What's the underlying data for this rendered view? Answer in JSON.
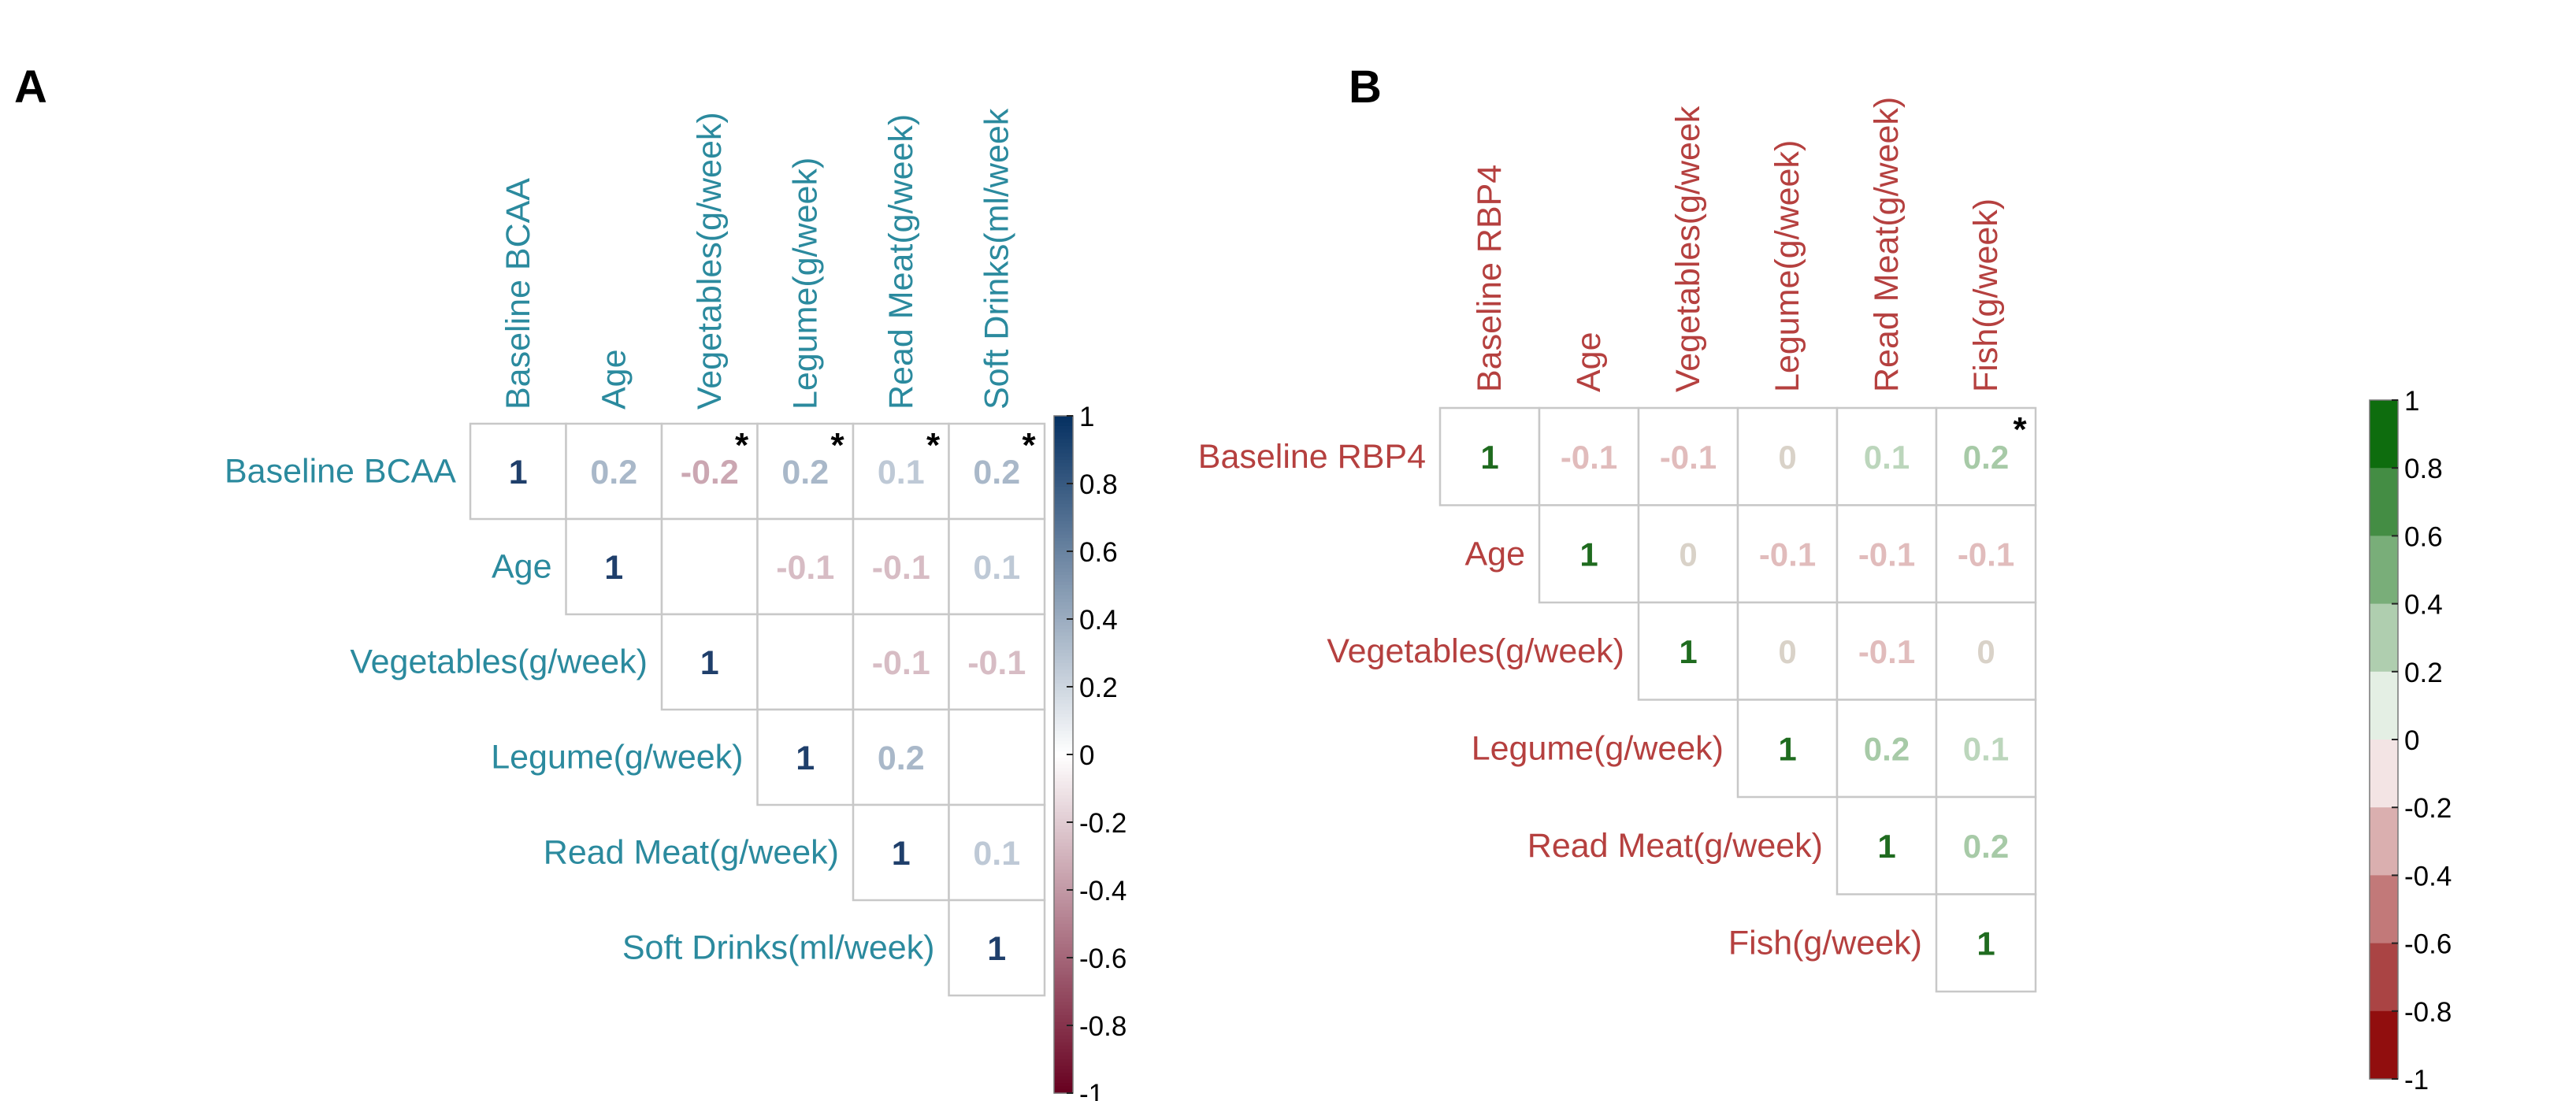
{
  "chart_data": [
    {
      "type": "heatmap",
      "panel_label": "A",
      "variables": [
        "Baseline BCAA",
        "Age",
        "Vegetables(g/week)",
        "Legume(g/week)",
        "Read Meat(g/week)",
        "Soft Drinks(ml/week)"
      ],
      "column_labels": [
        "Baseline BCAA",
        "Age",
        "Vegetables(g/week)",
        "Legume(g/week)",
        "Read Meat(g/week)",
        "Soft Drinks(ml/week"
      ],
      "matrix_upper": [
        [
          1,
          0.2,
          -0.2,
          0.2,
          0.1,
          0.2
        ],
        [
          null,
          1,
          null,
          -0.1,
          -0.1,
          0.1
        ],
        [
          null,
          null,
          1,
          null,
          -0.1,
          -0.1
        ],
        [
          null,
          null,
          null,
          1,
          0.2,
          null
        ],
        [
          null,
          null,
          null,
          null,
          1,
          0.1
        ],
        [
          null,
          null,
          null,
          null,
          null,
          1
        ]
      ],
      "significant": [
        [
          0,
          2
        ],
        [
          0,
          3
        ],
        [
          0,
          4
        ],
        [
          0,
          5
        ]
      ],
      "significance_marker": "*",
      "colorbar_ticks": [
        "1",
        "0.8",
        "0.6",
        "0.4",
        "0.2",
        "0",
        "-0.2",
        "-0.4",
        "-0.6",
        "-0.8",
        "-1"
      ],
      "colorbar_range": [
        -1,
        1
      ],
      "colorbar_style": "continuous",
      "colors": {
        "positive": "#053061",
        "negative": "#67001f",
        "label": "#2b8a9e",
        "diag_text": "#1f3f6b"
      }
    },
    {
      "type": "heatmap",
      "panel_label": "B",
      "variables": [
        "Baseline RBP4",
        "Age",
        "Vegetables(g/week)",
        "Legume(g/week)",
        "Read Meat(g/week)",
        "Fish(g/week)"
      ],
      "column_labels": [
        "Baseline RBP4",
        "Age",
        "Vegetables(g/week",
        "Legume(g/week)",
        "Read Meat(g/week)",
        "Fish(g/week)"
      ],
      "matrix_upper": [
        [
          1,
          -0.1,
          -0.1,
          0,
          0.1,
          0.2
        ],
        [
          null,
          1,
          0,
          -0.1,
          -0.1,
          -0.1
        ],
        [
          null,
          null,
          1,
          0,
          -0.1,
          0
        ],
        [
          null,
          null,
          null,
          1,
          0.2,
          0.1
        ],
        [
          null,
          null,
          null,
          null,
          1,
          0.2
        ],
        [
          null,
          null,
          null,
          null,
          null,
          1
        ]
      ],
      "significant": [
        [
          0,
          5
        ]
      ],
      "significance_marker": "*",
      "colorbar_ticks": [
        "1",
        "0.8",
        "0.6",
        "0.4",
        "0.2",
        "0",
        "-0.2",
        "-0.4",
        "-0.6",
        "-0.8",
        "-1"
      ],
      "colorbar_range": [
        -1,
        1
      ],
      "colorbar_style": "stepped",
      "colors": {
        "positive": "#006400",
        "negative": "#8b0000",
        "label": "#b5403f",
        "diag_text": "#1f6b1f"
      }
    }
  ]
}
